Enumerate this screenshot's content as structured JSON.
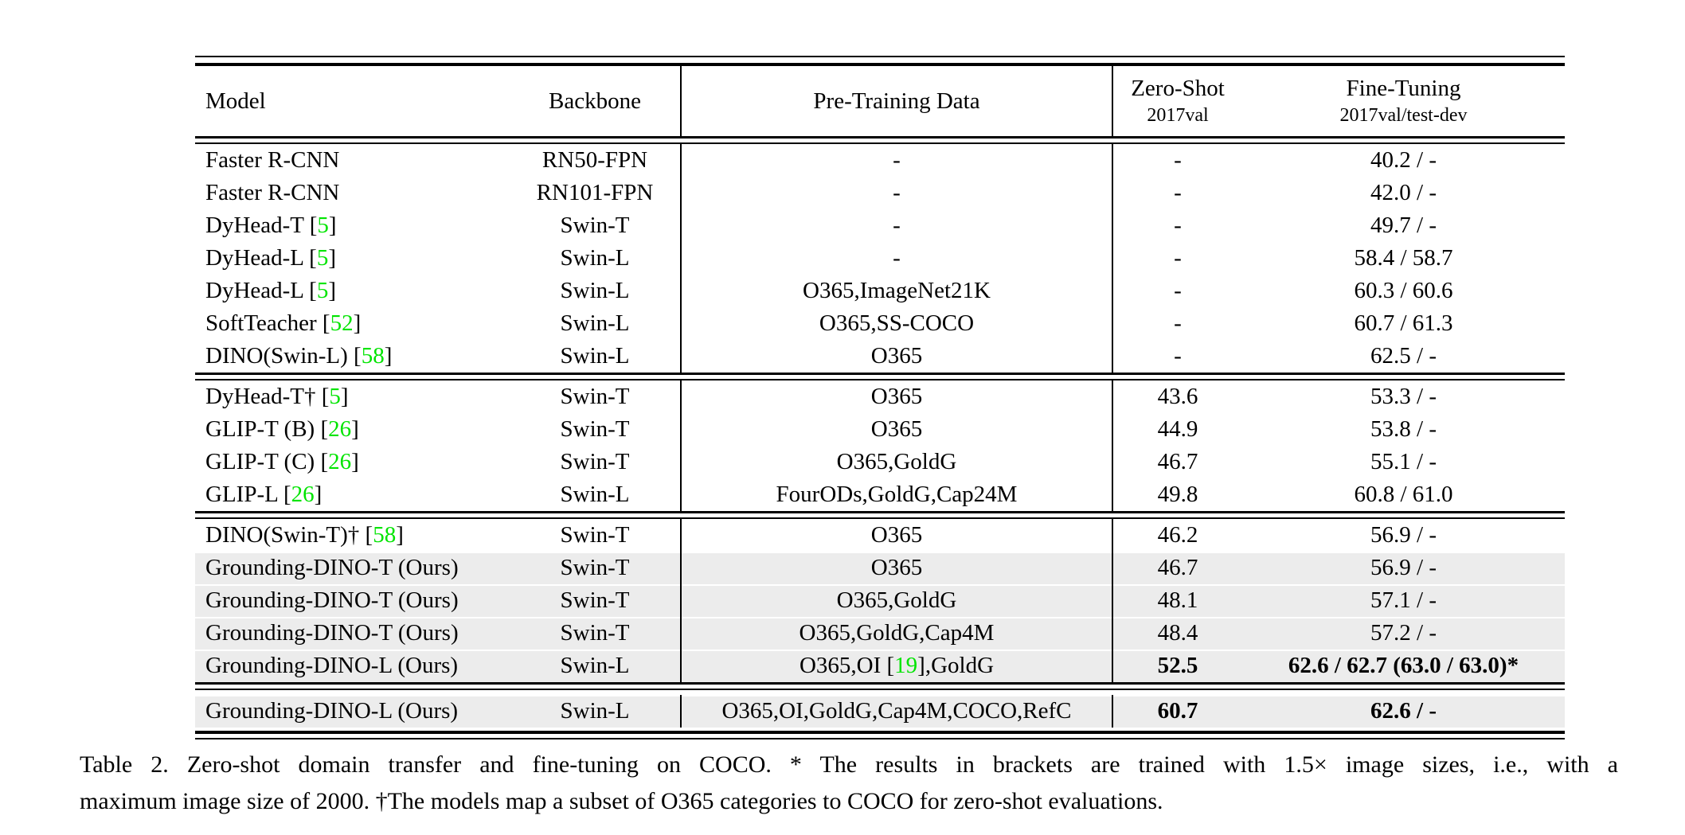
{
  "colors": {
    "row_highlight": "#ececec",
    "citation_green": "#00e400",
    "rule_black": "#000000"
  },
  "header": {
    "model": "Model",
    "backbone": "Backbone",
    "pretraining": "Pre-Training Data",
    "zero_shot_title": "Zero-Shot",
    "zero_shot_sub": "2017val",
    "fine_tuning_title": "Fine-Tuning",
    "fine_tuning_sub": "2017val/test-dev"
  },
  "groups": [
    {
      "rows": [
        {
          "model_a": "Faster R-CNN",
          "cite": "",
          "model_b": "",
          "backbone": "RN50-FPN",
          "pretrain_a": "-",
          "pretrain_cite": "",
          "pretrain_b": "",
          "zero_shot": "-",
          "fine_tuning": "40.2 / -",
          "highlight": false,
          "bold": false
        },
        {
          "model_a": "Faster R-CNN",
          "cite": "",
          "model_b": "",
          "backbone": "RN101-FPN",
          "pretrain_a": "-",
          "pretrain_cite": "",
          "pretrain_b": "",
          "zero_shot": "-",
          "fine_tuning": "42.0 / -",
          "highlight": false,
          "bold": false
        },
        {
          "model_a": "DyHead-T [",
          "cite": "5",
          "model_b": "]",
          "backbone": "Swin-T",
          "pretrain_a": "-",
          "pretrain_cite": "",
          "pretrain_b": "",
          "zero_shot": "-",
          "fine_tuning": "49.7 / -",
          "highlight": false,
          "bold": false
        },
        {
          "model_a": "DyHead-L [",
          "cite": "5",
          "model_b": "]",
          "backbone": "Swin-L",
          "pretrain_a": "-",
          "pretrain_cite": "",
          "pretrain_b": "",
          "zero_shot": "-",
          "fine_tuning": "58.4 / 58.7",
          "highlight": false,
          "bold": false
        },
        {
          "model_a": "DyHead-L [",
          "cite": "5",
          "model_b": "]",
          "backbone": "Swin-L",
          "pretrain_a": "O365,ImageNet21K",
          "pretrain_cite": "",
          "pretrain_b": "",
          "zero_shot": "-",
          "fine_tuning": "60.3 / 60.6",
          "highlight": false,
          "bold": false
        },
        {
          "model_a": "SoftTeacher [",
          "cite": "52",
          "model_b": "]",
          "backbone": "Swin-L",
          "pretrain_a": "O365,SS-COCO",
          "pretrain_cite": "",
          "pretrain_b": "",
          "zero_shot": "-",
          "fine_tuning": "60.7 / 61.3",
          "highlight": false,
          "bold": false
        },
        {
          "model_a": "DINO(Swin-L) [",
          "cite": "58",
          "model_b": "]",
          "backbone": "Swin-L",
          "pretrain_a": "O365",
          "pretrain_cite": "",
          "pretrain_b": "",
          "zero_shot": "-",
          "fine_tuning": "62.5 / -",
          "highlight": false,
          "bold": false
        }
      ]
    },
    {
      "rows": [
        {
          "model_a": "DyHead-T† [",
          "cite": "5",
          "model_b": "]",
          "backbone": "Swin-T",
          "pretrain_a": "O365",
          "pretrain_cite": "",
          "pretrain_b": "",
          "zero_shot": "43.6",
          "fine_tuning": "53.3 / -",
          "highlight": false,
          "bold": false
        },
        {
          "model_a": "GLIP-T (B) [",
          "cite": "26",
          "model_b": "]",
          "backbone": "Swin-T",
          "pretrain_a": "O365",
          "pretrain_cite": "",
          "pretrain_b": "",
          "zero_shot": "44.9",
          "fine_tuning": "53.8 / -",
          "highlight": false,
          "bold": false
        },
        {
          "model_a": "GLIP-T (C) [",
          "cite": "26",
          "model_b": "]",
          "backbone": "Swin-T",
          "pretrain_a": "O365,GoldG",
          "pretrain_cite": "",
          "pretrain_b": "",
          "zero_shot": "46.7",
          "fine_tuning": "55.1 / -",
          "highlight": false,
          "bold": false
        },
        {
          "model_a": "GLIP-L [",
          "cite": "26",
          "model_b": "]",
          "backbone": "Swin-L",
          "pretrain_a": "FourODs,GoldG,Cap24M",
          "pretrain_cite": "",
          "pretrain_b": "",
          "zero_shot": "49.8",
          "fine_tuning": "60.8 / 61.0",
          "highlight": false,
          "bold": false
        }
      ]
    },
    {
      "rows": [
        {
          "model_a": "DINO(Swin-T)† [",
          "cite": "58",
          "model_b": "]",
          "backbone": "Swin-T",
          "pretrain_a": "O365",
          "pretrain_cite": "",
          "pretrain_b": "",
          "zero_shot": "46.2",
          "fine_tuning": "56.9 / -",
          "highlight": false,
          "bold": false
        },
        {
          "model_a": "Grounding-DINO-T (Ours)",
          "cite": "",
          "model_b": "",
          "backbone": "Swin-T",
          "pretrain_a": "O365",
          "pretrain_cite": "",
          "pretrain_b": "",
          "zero_shot": "46.7",
          "fine_tuning": "56.9 / -",
          "highlight": true,
          "bold": false
        },
        {
          "model_a": "Grounding-DINO-T (Ours)",
          "cite": "",
          "model_b": "",
          "backbone": "Swin-T",
          "pretrain_a": "O365,GoldG",
          "pretrain_cite": "",
          "pretrain_b": "",
          "zero_shot": "48.1",
          "fine_tuning": "57.1 / -",
          "highlight": true,
          "bold": false
        },
        {
          "model_a": "Grounding-DINO-T (Ours)",
          "cite": "",
          "model_b": "",
          "backbone": "Swin-T",
          "pretrain_a": "O365,GoldG,Cap4M",
          "pretrain_cite": "",
          "pretrain_b": "",
          "zero_shot": "48.4",
          "fine_tuning": "57.2 / -",
          "highlight": true,
          "bold": false
        },
        {
          "model_a": "Grounding-DINO-L (Ours)",
          "cite": "",
          "model_b": "",
          "backbone": "Swin-L",
          "pretrain_a": "O365,OI [",
          "pretrain_cite": "19",
          "pretrain_b": "],GoldG",
          "zero_shot": "52.5",
          "fine_tuning": "62.6 / 62.7 (63.0 / 63.0)*",
          "highlight": true,
          "bold": true
        }
      ]
    },
    {
      "rows": [
        {
          "model_a": "Grounding-DINO-L (Ours)",
          "cite": "",
          "model_b": "",
          "backbone": "Swin-L",
          "pretrain_a": "O365,OI,GoldG,Cap4M,COCO,RefC",
          "pretrain_cite": "",
          "pretrain_b": "",
          "zero_shot": "60.7",
          "fine_tuning": "62.6 / -",
          "highlight": true,
          "bold": true
        }
      ]
    }
  ],
  "caption": {
    "line1": "Table 2. Zero-shot domain transfer and fine-tuning on COCO. * The results in brackets are trained with 1.5× image sizes, i.e., with a",
    "line2": "maximum image size of 2000. †The models map a subset of O365 categories to COCO for zero-shot evaluations."
  }
}
